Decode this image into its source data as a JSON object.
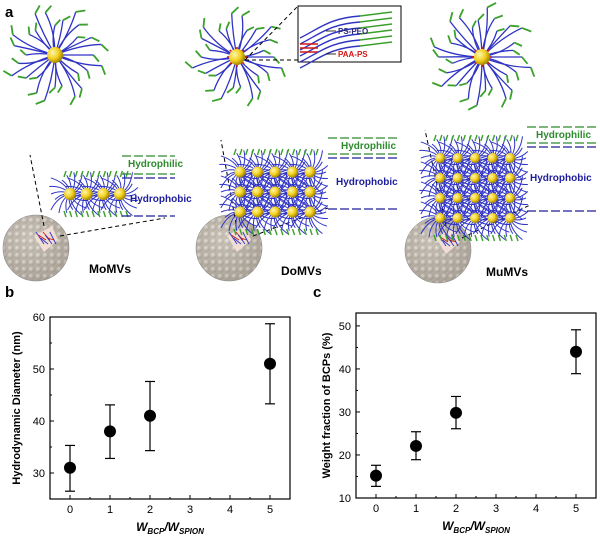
{
  "panel_labels": {
    "a": "a",
    "b": "b",
    "c": "c"
  },
  "schematic": {
    "legend": {
      "top": "PS-PEO",
      "bottom": "PAA-PS"
    },
    "layer_labels": {
      "hydrophilic": "Hydrophilic",
      "hydrophobic": "Hydrophobic"
    },
    "vesicles": [
      "MoMVs",
      "DoMVs",
      "MuMVs"
    ],
    "colors": {
      "chain": "#3034c4",
      "pea_tips": "#3aa12a",
      "core": "#f2cf1c",
      "shell_bead": "#c9c2b6",
      "green_line": "#2e8b2e",
      "blue_line": "#1d1d9c",
      "red_label": "#d01818"
    }
  },
  "chart_data": [
    {
      "type": "scatter",
      "panel": "b",
      "title": "",
      "xlabel_main": "W",
      "xlabel_sub1": "BCP",
      "xlabel_sep": "/W",
      "xlabel_sub2": "SPION",
      "ylabel": "Hydrodynamic Diameter (nm)",
      "xlim": [
        -0.5,
        5.5
      ],
      "ylim": [
        25,
        60
      ],
      "xticks": [
        0,
        1,
        2,
        3,
        4,
        5
      ],
      "yticks": [
        30,
        40,
        50,
        60
      ],
      "x": [
        0,
        1,
        2,
        5
      ],
      "y": [
        31,
        38,
        41,
        51
      ],
      "err_low": [
        26.5,
        32.8,
        34.3,
        43.3
      ],
      "err_high": [
        35.3,
        43.1,
        47.6,
        58.7
      ]
    },
    {
      "type": "scatter",
      "panel": "c",
      "title": "",
      "xlabel_main": "W",
      "xlabel_sub1": "BCP",
      "xlabel_sep": "/W",
      "xlabel_sub2": "SPION",
      "ylabel": "Weight fraction of BCPs (%)",
      "xlim": [
        -0.5,
        5.5
      ],
      "ylim": [
        10,
        53
      ],
      "xticks": [
        0,
        1,
        2,
        3,
        4,
        5
      ],
      "yticks": [
        10,
        20,
        30,
        40,
        50
      ],
      "x": [
        0,
        1,
        2,
        5
      ],
      "y": [
        15.2,
        22.1,
        29.8,
        44
      ],
      "err_low": [
        12.7,
        18.9,
        26.1,
        38.9
      ],
      "err_high": [
        17.6,
        25.4,
        33.6,
        49.1
      ]
    }
  ]
}
